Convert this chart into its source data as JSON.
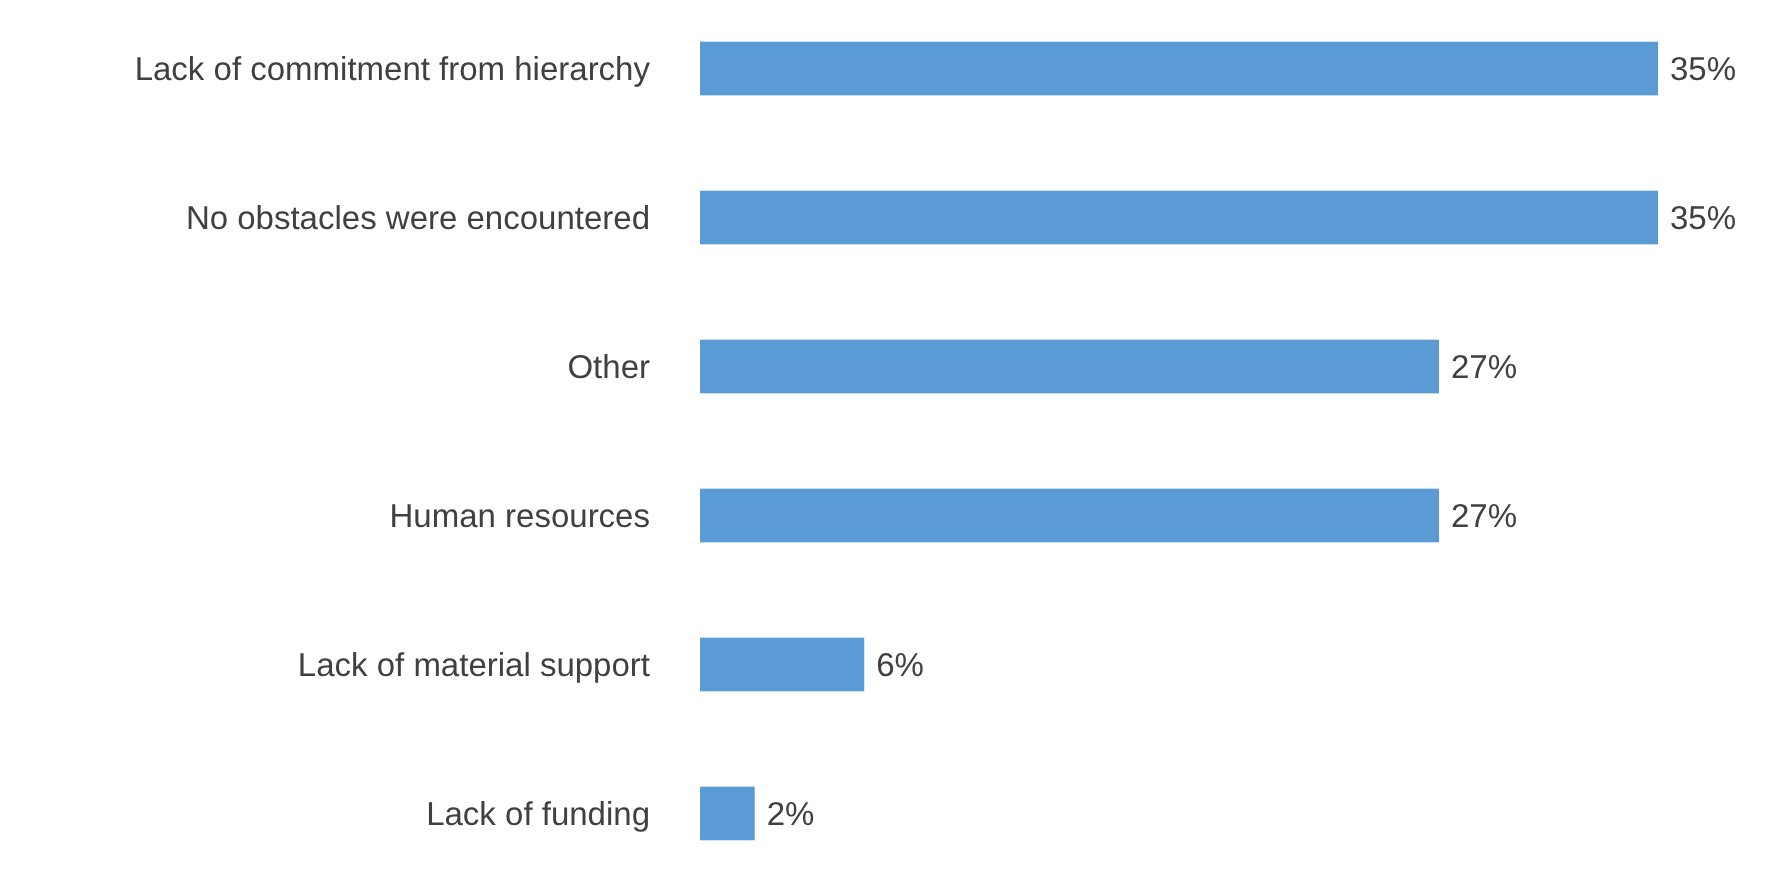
{
  "chart_data": {
    "type": "bar",
    "orientation": "horizontal",
    "categories": [
      "Lack of commitment from hierarchy",
      "No obstacles were encountered",
      "Other",
      "Human resources",
      "Lack of material support",
      "Lack of funding"
    ],
    "values": [
      35,
      35,
      27,
      27,
      6,
      2
    ],
    "value_labels": [
      "35%",
      "35%",
      "27%",
      "27%",
      "6%",
      "2%"
    ],
    "color": "#5b9bd5"
  }
}
